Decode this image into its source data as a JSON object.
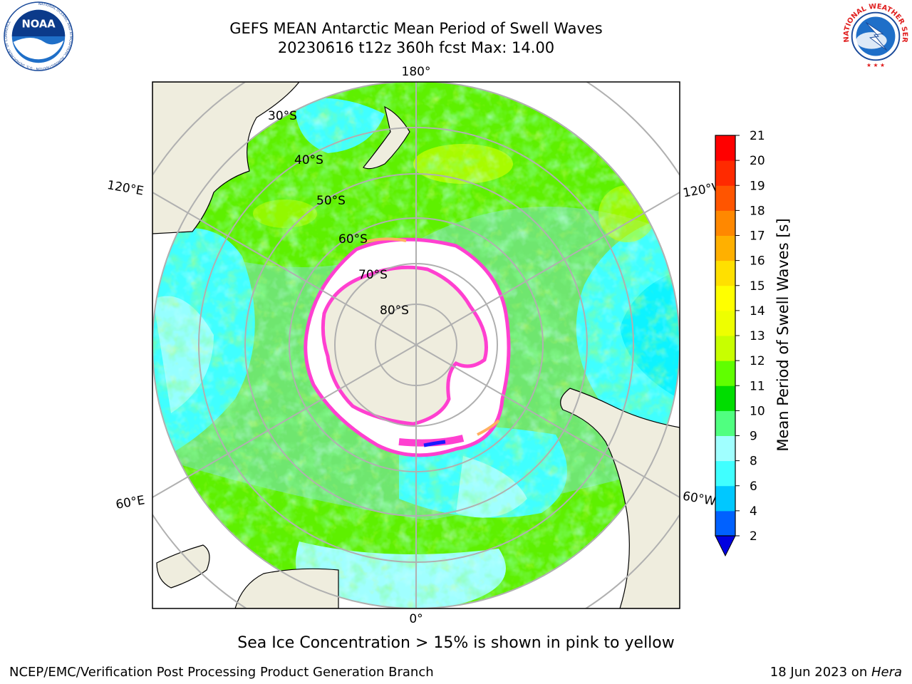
{
  "header": {
    "title_line1": "GEFS MEAN Antarctic Mean Period of Swell Waves",
    "title_line2": "20230616 t12z 360h fcst   Max: 14.00"
  },
  "logos": {
    "left": "NOAA",
    "left_ring": "NATIONAL OCEANIC AND ATMOSPHERIC ADMINISTRATION · U.S. DEPARTMENT OF COMMERCE",
    "right_ring": "NATIONAL WEATHER SERVICE"
  },
  "map": {
    "lon_labels": {
      "top": "180°",
      "bottom": "0°",
      "upper_left": "120°E",
      "upper_right": "120°W",
      "lower_left": "60°E",
      "lower_right": "60°W"
    },
    "lat_labels": [
      "30°S",
      "40°S",
      "50°S",
      "60°S",
      "70°S",
      "80°S"
    ]
  },
  "colorbar": {
    "label": "Mean Period of Swell Waves [s]",
    "ticks": [
      "2",
      "4",
      "6",
      "8",
      "9",
      "10",
      "11",
      "12",
      "13",
      "14",
      "15",
      "16",
      "17",
      "18",
      "19",
      "20",
      "21"
    ],
    "colors": [
      "#0061ff",
      "#00c8ff",
      "#40ffff",
      "#a0ffff",
      "#50ff80",
      "#00dd00",
      "#60ff00",
      "#c8ff00",
      "#eeff00",
      "#ffff00",
      "#ffe000",
      "#ffb000",
      "#ff8800",
      "#ff5500",
      "#ff2a00",
      "#ff0000"
    ],
    "extend_color": "#0000e0"
  },
  "caption": "Sea Ice Concentration > 15% is shown in pink to yellow",
  "footer": {
    "left": "NCEP/EMC/Verification Post Processing Product Generation Branch",
    "right_date": "18 Jun 2023 on ",
    "right_host": "Hera"
  }
}
